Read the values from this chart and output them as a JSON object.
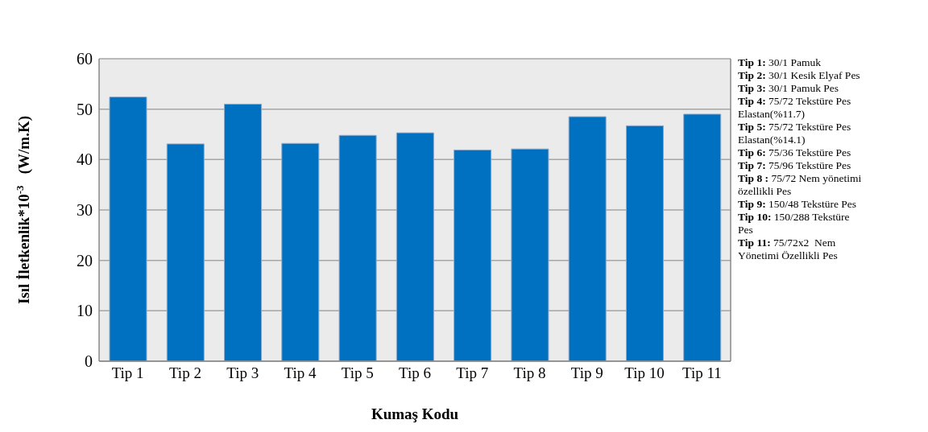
{
  "chart_data": {
    "type": "bar",
    "xlabel": "Kumaş Kodu",
    "ylabel": "Isıl İletkenlik*10$^{-3}$  (W/m.K)",
    "categories": [
      "Tip 1",
      "Tip 2",
      "Tip 3",
      "Tip 4",
      "Tip 5",
      "Tip 6",
      "Tip 7",
      "Tip 8",
      "Tip 9",
      "Tip 10",
      "Tip 11"
    ],
    "values": [
      52.4,
      43.1,
      51.0,
      43.2,
      44.8,
      45.3,
      41.9,
      42.1,
      48.5,
      46.7,
      49.0
    ],
    "color": "#0070c0",
    "ylim": [
      0,
      60
    ],
    "yticks": [
      0,
      10,
      20,
      30,
      40,
      50,
      60
    ],
    "grid": "y",
    "annotations": [
      "Tip 1: 30/1 Pamuk",
      "Tip 2: 30/1 Kesik Elyaf Pes",
      "Tip 3: 30/1 Pamuk Pes",
      "Tip 4: 75/72 Tekstüre Pes Elastan(%11.7)",
      "Tip 5: 75/72 Tekstüre Pes Elastan(%14.1)",
      "Tip 6: 75/36 Tekstüre Pes",
      "Tip 7: 75/96 Tekstüre Pes",
      "Tip 8 : 75/72 Nem yönetimi özellikli Pes",
      "Tip 9: 150/48 Tekstüre Pes",
      "Tip 10: 150/288 Tekstüre Pes",
      "Tip 11: 75/72x2  Nem Yönetimi Özellikli Pes"
    ]
  }
}
